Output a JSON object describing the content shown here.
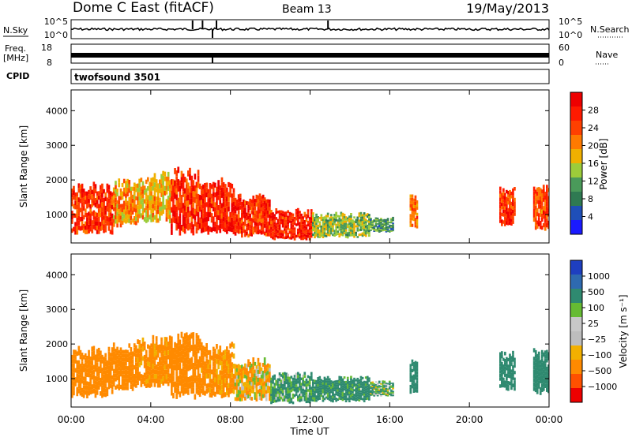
{
  "header": {
    "station": "Dome C East (fitACF)",
    "beam": "Beam 13",
    "date": "19/May/2013"
  },
  "top_panels": {
    "nsky_label": "N.Sky",
    "nsky_ticks": [
      "10^5",
      "10^0"
    ],
    "nsearch_label": "N.Search",
    "nsearch_ticks": [
      "10^5",
      "10^0"
    ],
    "freq_label_1": "Freq.",
    "freq_label_2": "[MHz]",
    "freq_ticks": [
      "18",
      "8"
    ],
    "nave_label": "Nave",
    "nave_ticks": [
      "60",
      "0"
    ],
    "cpid_label": "CPID",
    "cpid_value": "twofsound 3501"
  },
  "colors": {
    "power_scale": [
      "#1a1aff",
      "#1f4fb8",
      "#2f7a52",
      "#4a9a5a",
      "#9ccc3a",
      "#f0b000",
      "#ff7a00",
      "#ff4000",
      "#ff1a00",
      "#ee0000"
    ],
    "velocity_scale": [
      "#1e3fc0",
      "#2e6ab0",
      "#2f8a70",
      "#66bb33",
      "#c8c8c8",
      "#bdbdbd",
      "#f2b000",
      "#ff8a00",
      "#ff5000",
      "#ee0000"
    ]
  },
  "chart_data": [
    {
      "type": "heatmap",
      "name": "power-panel",
      "ylabel": "Slant Range [km]",
      "ylim": [
        180,
        4600
      ],
      "yticks": [
        "1000",
        "2000",
        "3000",
        "4000"
      ],
      "colorbar_label": "Power [dB]",
      "colorbar_ticks": [
        "4",
        "8",
        "12",
        "16",
        "20",
        "24",
        "28"
      ],
      "colorbar_range": [
        0,
        32
      ],
      "xlim": [
        0,
        24
      ],
      "echo_regions": [
        {
          "t0": 0.0,
          "t1": 2.1,
          "r0": 500,
          "r1": 1800,
          "level": 26
        },
        {
          "t0": 2.1,
          "t1": 3.3,
          "r0": 700,
          "r1": 1900,
          "level": 20
        },
        {
          "t0": 3.3,
          "t1": 5.0,
          "r0": 800,
          "r1": 2100,
          "level": 18
        },
        {
          "t0": 5.0,
          "t1": 6.5,
          "r0": 500,
          "r1": 2200,
          "level": 26
        },
        {
          "t0": 6.5,
          "t1": 8.2,
          "r0": 500,
          "r1": 1900,
          "level": 27
        },
        {
          "t0": 8.2,
          "t1": 10.0,
          "r0": 400,
          "r1": 1500,
          "level": 26
        },
        {
          "t0": 10.0,
          "t1": 12.1,
          "r0": 300,
          "r1": 1100,
          "level": 27
        },
        {
          "t0": 12.1,
          "t1": 15.0,
          "r0": 350,
          "r1": 1000,
          "level": 14
        },
        {
          "t0": 15.0,
          "t1": 16.2,
          "r0": 500,
          "r1": 900,
          "level": 10
        },
        {
          "t0": 17.0,
          "t1": 17.4,
          "r0": 600,
          "r1": 1500,
          "level": 22
        },
        {
          "t0": 21.5,
          "t1": 22.3,
          "r0": 700,
          "r1": 1700,
          "level": 26
        },
        {
          "t0": 23.2,
          "t1": 24.0,
          "r0": 600,
          "r1": 1800,
          "level": 24
        }
      ]
    },
    {
      "type": "heatmap",
      "name": "velocity-panel",
      "ylabel": "Slant Range [km]",
      "ylim": [
        180,
        4600
      ],
      "yticks": [
        "1000",
        "2000",
        "3000",
        "4000"
      ],
      "colorbar_label": "Velocity [m s⁻¹]",
      "colorbar_ticks": [
        "1000",
        "500",
        "100",
        "25",
        "−25",
        "−100",
        "−500",
        "−1000"
      ],
      "xlim": [
        0,
        24
      ],
      "xticks": [
        "00:00",
        "04:00",
        "08:00",
        "12:00",
        "16:00",
        "20:00",
        "00:00"
      ],
      "xlabel": "Time UT",
      "echo_regions": [
        {
          "t0": 0.0,
          "t1": 2.1,
          "r0": 500,
          "r1": 1800,
          "level": -300
        },
        {
          "t0": 2.1,
          "t1": 3.3,
          "r0": 700,
          "r1": 1900,
          "level": -250
        },
        {
          "t0": 3.3,
          "t1": 5.0,
          "r0": 800,
          "r1": 2100,
          "level": -200
        },
        {
          "t0": 5.0,
          "t1": 6.5,
          "r0": 500,
          "r1": 2200,
          "level": -300
        },
        {
          "t0": 6.5,
          "t1": 8.2,
          "r0": 500,
          "r1": 1900,
          "level": -200
        },
        {
          "t0": 8.2,
          "t1": 10.0,
          "r0": 400,
          "r1": 1500,
          "level": -80
        },
        {
          "t0": 10.0,
          "t1": 12.1,
          "r0": 300,
          "r1": 1100,
          "level": 150
        },
        {
          "t0": 12.1,
          "t1": 15.0,
          "r0": 350,
          "r1": 1000,
          "level": 200
        },
        {
          "t0": 15.0,
          "t1": 16.2,
          "r0": 500,
          "r1": 900,
          "level": 100
        },
        {
          "t0": 17.0,
          "t1": 17.4,
          "r0": 600,
          "r1": 1500,
          "level": 300
        },
        {
          "t0": 21.5,
          "t1": 22.3,
          "r0": 700,
          "r1": 1700,
          "level": 250
        },
        {
          "t0": 23.2,
          "t1": 24.0,
          "r0": 600,
          "r1": 1800,
          "level": 300
        }
      ]
    }
  ]
}
